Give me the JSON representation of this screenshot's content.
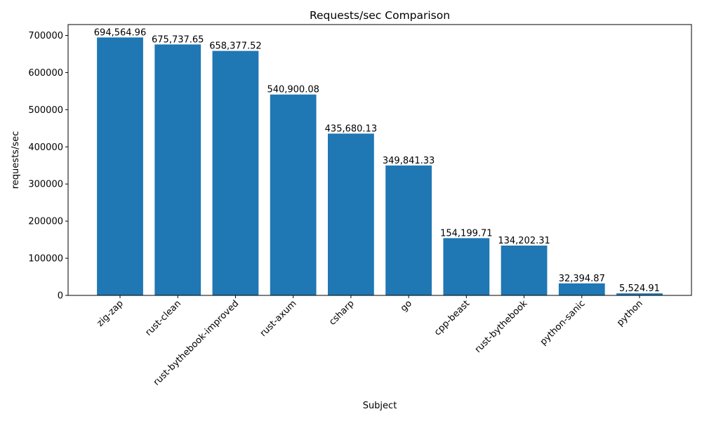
{
  "chart_data": {
    "type": "bar",
    "title": "Requests/sec Comparison",
    "xlabel": "Subject",
    "ylabel": "requests/sec",
    "categories": [
      "zig-zap",
      "rust-clean",
      "rust-bythebook-improved",
      "rust-axum",
      "csharp",
      "go",
      "cpp-beast",
      "rust-bythebook",
      "python-sanic",
      "python"
    ],
    "values": [
      694564.96,
      675737.65,
      658377.52,
      540900.08,
      435680.13,
      349841.33,
      154199.71,
      134202.31,
      32394.87,
      5524.91
    ],
    "data_labels": [
      "694,564.96",
      "675,737.65",
      "658,377.52",
      "540,900.08",
      "435,680.13",
      "349,841.33",
      "154,199.71",
      "134,202.31",
      "32,394.87",
      "5,524.91"
    ],
    "yticks": [
      0,
      100000,
      200000,
      300000,
      400000,
      500000,
      600000,
      700000
    ],
    "ylim": [
      0,
      729293
    ],
    "grid": false,
    "bar_color": "#1f77b4"
  }
}
